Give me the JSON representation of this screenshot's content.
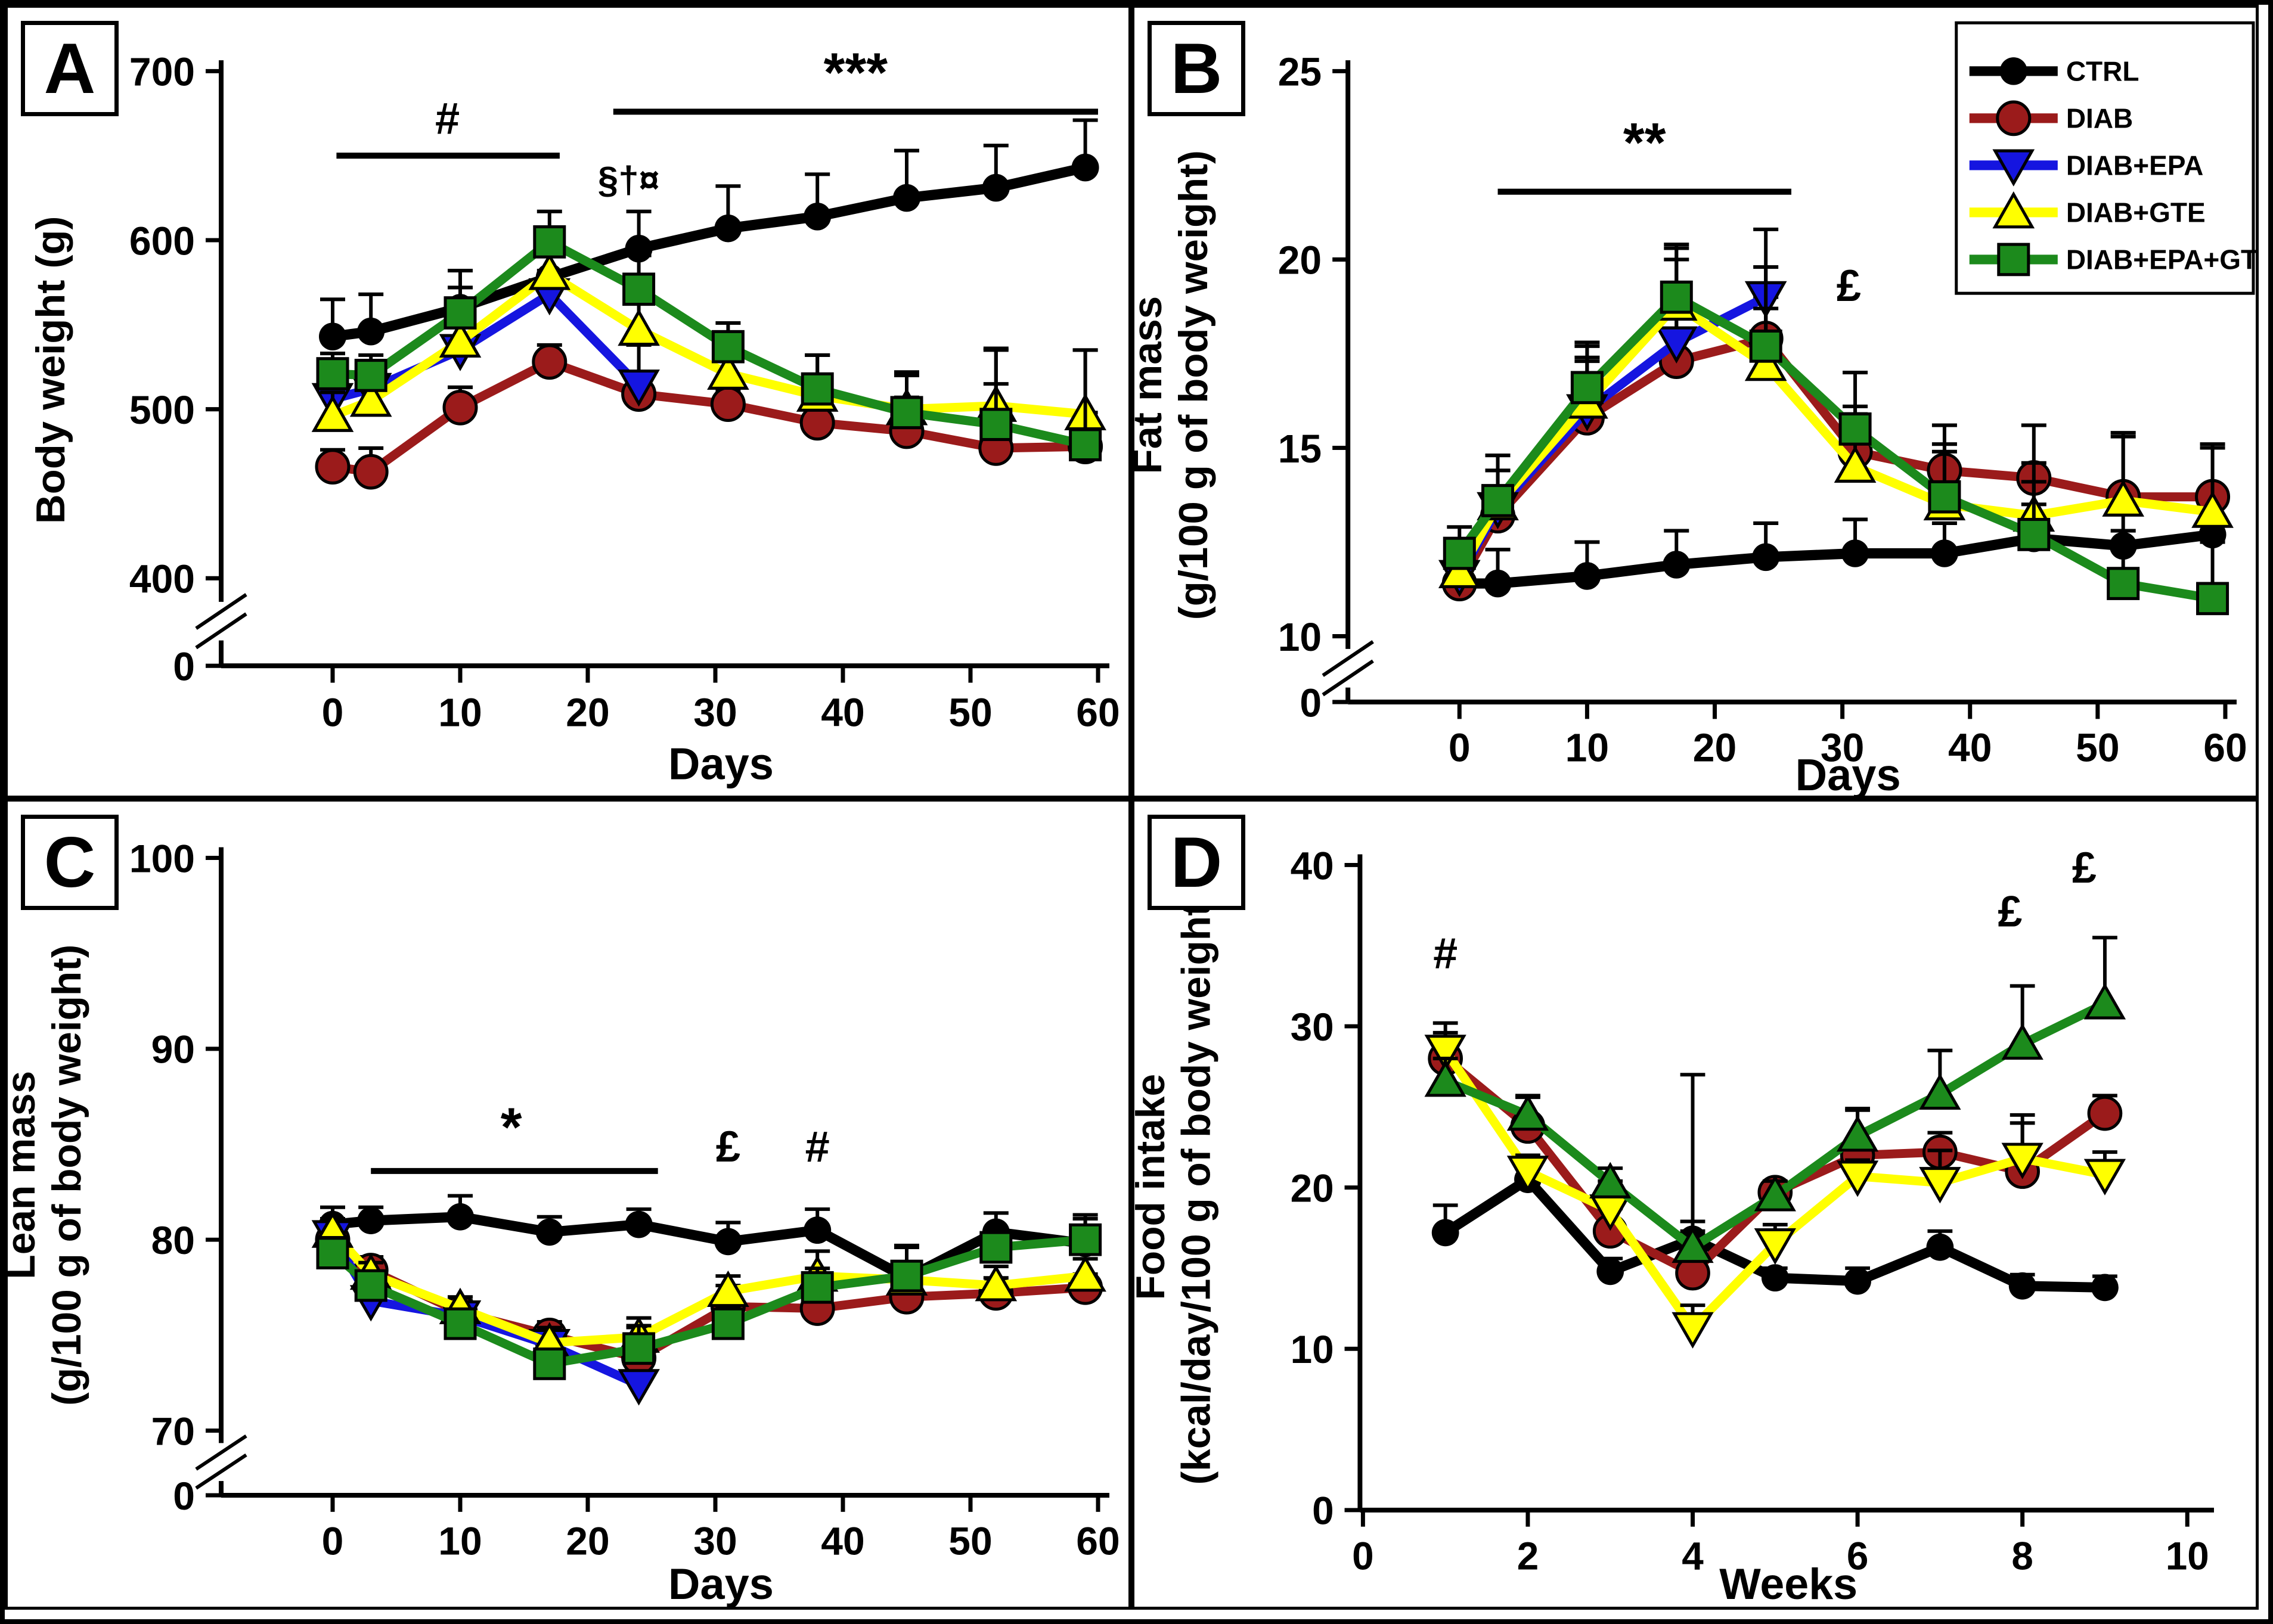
{
  "figure": {
    "background": "#ffffff",
    "panels": [
      {
        "letter": "A"
      },
      {
        "letter": "B"
      },
      {
        "letter": "C"
      },
      {
        "letter": "D"
      }
    ],
    "colors": {
      "ctrl": "#000000",
      "diab": "#9B1B1B",
      "diab_epa": "#1515E0",
      "diab_gte": "#FFFF00",
      "diab_epa_gte": "#1C8A1C"
    }
  },
  "chart_data": [
    {
      "type": "line",
      "panel": "A",
      "title": "",
      "xlabel": "Days",
      "ylabel": [
        "Body weight (g)"
      ],
      "yticks": [
        700,
        600,
        500,
        400
      ],
      "zero_label": "0",
      "axis_break": true,
      "ylim": [
        400,
        700
      ],
      "xticks": [
        0,
        10,
        20,
        30,
        40,
        50,
        60
      ],
      "x": [
        0,
        3,
        10,
        17,
        24,
        31,
        38,
        45,
        52,
        59
      ],
      "grid": false,
      "series": [
        {
          "name": "CTRL",
          "color": "#000000",
          "marker": "circle",
          "values": [
            543,
            546,
            560,
            578,
            595,
            607,
            614,
            625,
            631,
            643
          ],
          "err": [
            22,
            22,
            22,
            20,
            22,
            25,
            25,
            28,
            25,
            28
          ]
        },
        {
          "name": "DIAB",
          "color": "#9B1B1B",
          "marker": "circle-outline",
          "values": [
            466,
            463,
            501,
            528,
            509,
            503,
            492,
            487,
            477,
            478
          ],
          "err": [
            10,
            14,
            12,
            10,
            10,
            8,
            10,
            20,
            38,
            20
          ]
        },
        {
          "name": "DIAB+EPA",
          "color": "#1515E0",
          "marker": "triangle-down",
          "values": [
            506,
            512,
            535,
            568,
            514
          ],
          "err": [
            14,
            15,
            18,
            14,
            24
          ]
        },
        {
          "name": "DIAB+GTE",
          "color": "#FFFF00",
          "marker": "triangle-up",
          "values": [
            496,
            505,
            540,
            580,
            547,
            521,
            508,
            500,
            502,
            497
          ],
          "err": [
            14,
            18,
            15,
            12,
            18,
            14,
            24,
            20,
            34,
            38
          ]
        },
        {
          "name": "DIAB+EPA+GTE",
          "color": "#1C8A1C",
          "marker": "square",
          "values": [
            521,
            520,
            557,
            599,
            571,
            537,
            512,
            498,
            491,
            479
          ],
          "err": [
            12,
            12,
            15,
            18,
            20,
            14,
            20,
            24,
            44,
            56
          ]
        }
      ],
      "annotations": [
        {
          "type": "line",
          "x1": 0.3,
          "x2": 17.8,
          "y": 650
        },
        {
          "type": "text",
          "text": "#",
          "x": 9,
          "y": 663
        },
        {
          "type": "text",
          "text": "§†¤",
          "x": 23.2,
          "y": 628
        },
        {
          "type": "line",
          "x1": 22,
          "x2": 60,
          "y": 676
        },
        {
          "type": "text",
          "text": "***",
          "x": 41,
          "y": 688
        }
      ]
    },
    {
      "type": "line",
      "panel": "B",
      "title": "",
      "xlabel": "Days",
      "ylabel": [
        "Fat mass",
        "(g/100 g of body weight)"
      ],
      "yticks": [
        25,
        20,
        15,
        10
      ],
      "zero_label": "0",
      "axis_break": true,
      "ylim": [
        10,
        25
      ],
      "xticks": [
        0,
        10,
        20,
        30,
        40,
        50,
        60
      ],
      "x": [
        0,
        3,
        10,
        17,
        24,
        31,
        38,
        45,
        52,
        59
      ],
      "grid": false,
      "series": [
        {
          "name": "CTRL",
          "color": "#000000",
          "marker": "circle",
          "values": [
            11.4,
            11.4,
            11.6,
            11.9,
            12.1,
            12.2,
            12.2,
            12.6,
            12.4,
            12.7
          ],
          "err": [
            1.0,
            0.9,
            0.9,
            0.9,
            0.9,
            0.9,
            0.8,
            0.9,
            0.9,
            0.9
          ]
        },
        {
          "name": "DIAB",
          "color": "#9B1B1B",
          "marker": "circle-outline",
          "values": [
            11.4,
            13.2,
            15.8,
            17.3,
            17.9,
            14.9,
            14.4,
            14.2,
            13.7,
            13.7
          ],
          "err": [
            0.4,
            1.2,
            1.5,
            1.4,
            1.1,
            1.2,
            1.2,
            1.4,
            1.7,
            1.4
          ]
        },
        {
          "name": "DIAB+EPA",
          "color": "#1515E0",
          "marker": "triangle-down",
          "values": [
            11.6,
            13.4,
            16.0,
            17.8,
            19.0
          ],
          "err": [
            0.5,
            1.0,
            1.4,
            2.2,
            0.8
          ]
        },
        {
          "name": "DIAB+GTE",
          "color": "#FFFF00",
          "marker": "triangle-up",
          "values": [
            11.7,
            13.5,
            16.2,
            18.8,
            17.2,
            14.5,
            13.5,
            13.2,
            13.6,
            13.3
          ],
          "err": [
            0.6,
            1.3,
            1.5,
            1.5,
            1.5,
            1.4,
            1.4,
            1.4,
            1.7,
            1.7
          ]
        },
        {
          "name": "DIAB+EPA+GTE",
          "color": "#1C8A1C",
          "marker": "square",
          "values": [
            12.2,
            13.6,
            16.6,
            19.0,
            17.7,
            15.5,
            13.7,
            12.7,
            11.4,
            11.0
          ],
          "err": [
            0.7,
            1.2,
            1.2,
            1.4,
            3.1,
            1.5,
            1.4,
            1.4,
            1.4,
            1.5
          ]
        }
      ],
      "annotations": [
        {
          "type": "line",
          "x1": 3,
          "x2": 26,
          "y": 21.8
        },
        {
          "type": "text",
          "text": "**",
          "x": 14.5,
          "y": 22.6
        },
        {
          "type": "text",
          "text": "£",
          "x": 30.5,
          "y": 18.9
        }
      ],
      "legend": {
        "position": "top-right",
        "items": [
          {
            "label": "CTRL",
            "color": "#000000",
            "marker": "circle"
          },
          {
            "label": "DIAB",
            "color": "#9B1B1B",
            "marker": "circle-outline"
          },
          {
            "label": "DIAB+EPA",
            "color": "#1515E0",
            "marker": "triangle-down"
          },
          {
            "label": "DIAB+GTE",
            "color": "#FFFF00",
            "marker": "triangle-up"
          },
          {
            "label": "DIAB+EPA+GTE",
            "color": "#1C8A1C",
            "marker": "square"
          }
        ]
      }
    },
    {
      "type": "line",
      "panel": "C",
      "title": "",
      "xlabel": "Days",
      "ylabel": [
        "Lean mass",
        "(g/100 g of body weight)"
      ],
      "yticks": [
        100,
        90,
        80,
        70
      ],
      "zero_label": "0",
      "axis_break": true,
      "ylim": [
        70,
        100
      ],
      "xticks": [
        0,
        10,
        20,
        30,
        40,
        50,
        60
      ],
      "x": [
        0,
        3,
        10,
        17,
        24,
        31,
        38,
        45,
        52,
        59
      ],
      "grid": false,
      "series": [
        {
          "name": "CTRL",
          "color": "#000000",
          "marker": "circle",
          "values": [
            80.8,
            81.0,
            81.2,
            80.4,
            80.8,
            79.9,
            80.5,
            78.0,
            80.4,
            79.8
          ],
          "err": [
            0.9,
            0.7,
            1.1,
            0.8,
            0.8,
            1.0,
            1.1,
            1.6,
            1.0,
            1.3
          ]
        },
        {
          "name": "DIAB",
          "color": "#9B1B1B",
          "marker": "circle-outline",
          "values": [
            80.0,
            78.4,
            76.2,
            75.0,
            73.8,
            76.5,
            76.4,
            77.0,
            77.2,
            77.5
          ],
          "err": [
            0.6,
            0.7,
            0.6,
            0.7,
            1.6,
            1.1,
            0.8,
            0.8,
            0.8,
            0.7
          ]
        },
        {
          "name": "DIAB+EPA",
          "color": "#1515E0",
          "marker": "triangle-down",
          "values": [
            80.2,
            76.8,
            76.0,
            74.5,
            72.4
          ],
          "err": [
            0.7,
            0.6,
            0.6,
            0.6,
            0.7
          ]
        },
        {
          "name": "DIAB+GTE",
          "color": "#FFFF00",
          "marker": "triangle-up",
          "values": [
            80.4,
            78.2,
            76.4,
            74.6,
            74.9,
            77.3,
            78.1,
            77.9,
            77.6,
            78.1
          ],
          "err": [
            0.7,
            0.6,
            0.6,
            0.8,
            1.0,
            0.8,
            1.3,
            0.9,
            1.0,
            0.9
          ]
        },
        {
          "name": "DIAB+EPA+GTE",
          "color": "#1C8A1C",
          "marker": "square",
          "values": [
            79.3,
            77.6,
            75.6,
            73.5,
            74.3,
            75.6,
            77.5,
            78.1,
            79.6,
            80.0
          ],
          "err": [
            0.8,
            0.7,
            0.7,
            0.6,
            1.2,
            0.8,
            1.0,
            1.6,
            0.9,
            1.3
          ]
        }
      ],
      "annotations": [
        {
          "type": "line",
          "x1": 3,
          "x2": 25.5,
          "y": 83.6
        },
        {
          "type": "text",
          "text": "*",
          "x": 14,
          "y": 84.9
        },
        {
          "type": "text",
          "text": "£",
          "x": 31,
          "y": 84.1
        },
        {
          "type": "text",
          "text": "#",
          "x": 38,
          "y": 84.1
        }
      ]
    },
    {
      "type": "line",
      "panel": "D",
      "title": "",
      "xlabel": "Weeks",
      "ylabel": [
        "Food intake",
        "(kcal/day/100 g of body weight)"
      ],
      "yticks": [
        40,
        30,
        20,
        10,
        0
      ],
      "zero_label": null,
      "axis_break": false,
      "ylim": [
        0,
        40
      ],
      "xticks": [
        0,
        2,
        4,
        6,
        8,
        10
      ],
      "x": [
        1,
        2,
        3,
        4,
        5,
        6,
        7,
        8,
        9
      ],
      "grid": false,
      "series": [
        {
          "name": "CTRL",
          "color": "#000000",
          "marker": "circle",
          "values": [
            17.2,
            20.5,
            14.8,
            16.8,
            14.4,
            14.2,
            16.3,
            13.9,
            13.8
          ],
          "err": [
            1.7,
            0.9,
            0.8,
            10.2,
            0.6,
            0.8,
            1.0,
            0.7,
            0.7
          ]
        },
        {
          "name": "DIAB",
          "color": "#9B1B1B",
          "marker": "circle-outline",
          "values": [
            28.0,
            23.8,
            17.3,
            14.7,
            19.7,
            22.0,
            22.2,
            21.0,
            24.6
          ],
          "err": [
            2.2,
            1.8,
            1.4,
            3.2,
            0.6,
            2.8,
            1.2,
            3.0,
            1.1
          ]
        },
        {
          "name": "DIAB+GTE",
          "color": "#FFFF00",
          "marker": "triangle-down",
          "values": [
            28.5,
            21.0,
            18.6,
            11.3,
            16.5,
            20.7,
            20.3,
            21.8,
            20.8
          ],
          "err": [
            1.1,
            1.0,
            1.8,
            1.4,
            1.2,
            1.0,
            2.0,
            2.7,
            1.4
          ]
        },
        {
          "name": "DIAB+EPA+GTE",
          "color": "#1C8A1C",
          "marker": "triangle-up",
          "values": [
            26.6,
            24.5,
            20.3,
            16.3,
            19.5,
            23.2,
            25.8,
            28.9,
            31.4
          ],
          "err": [
            1.4,
            1.2,
            0.9,
            1.0,
            0.9,
            1.7,
            2.7,
            3.6,
            4.1
          ]
        }
      ],
      "annotations": [
        {
          "type": "text",
          "text": "#",
          "x": 1.0,
          "y": 33.6
        },
        {
          "type": "text",
          "text": "£",
          "x": 7.85,
          "y": 36.2
        },
        {
          "type": "text",
          "text": "£",
          "x": 8.75,
          "y": 38.9
        }
      ]
    }
  ]
}
